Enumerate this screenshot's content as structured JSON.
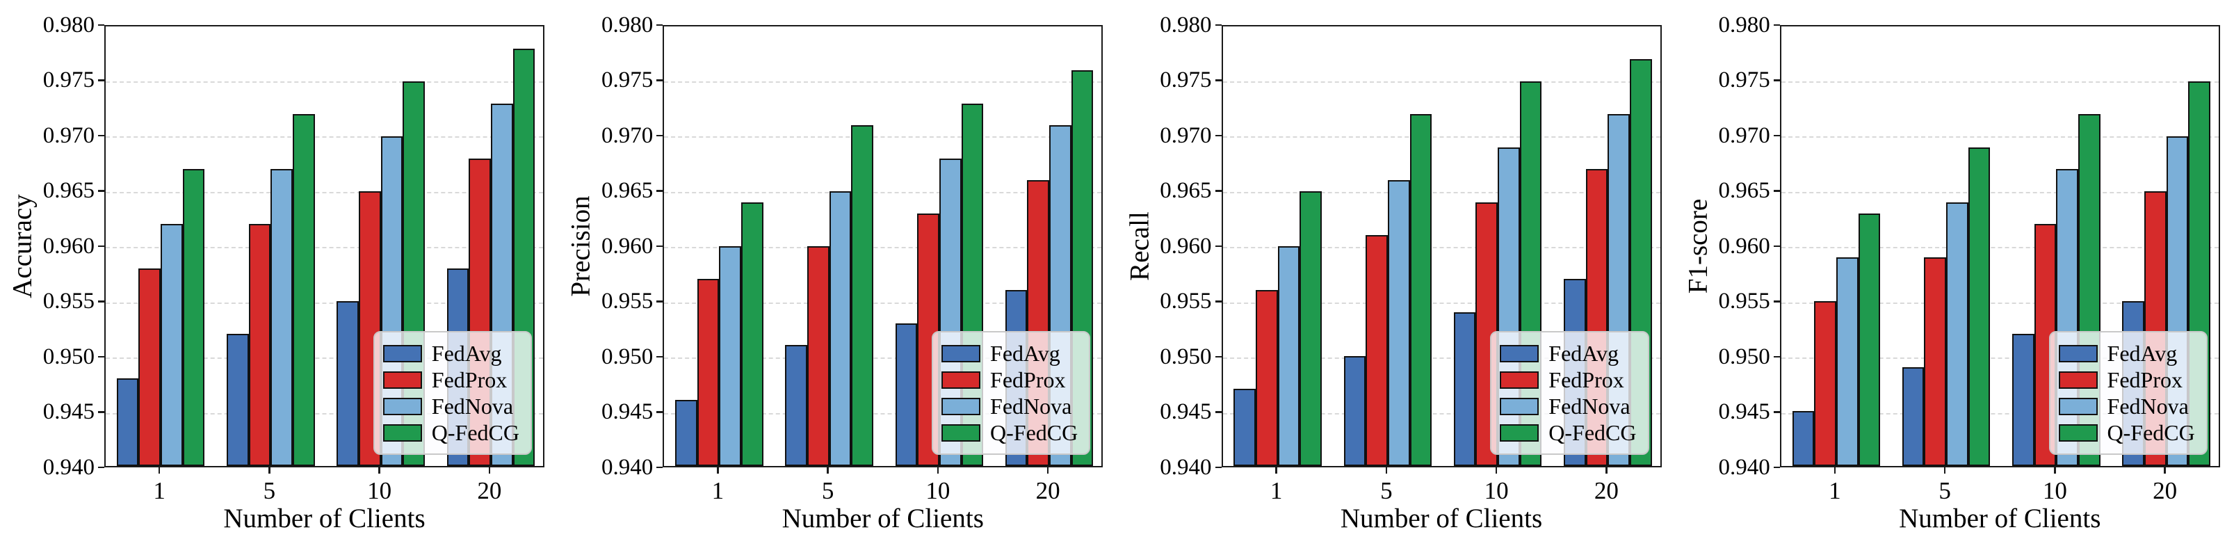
{
  "figure": {
    "xlabel": "Number of Clients",
    "categories": [
      "1",
      "5",
      "10",
      "20"
    ],
    "legend_labels": [
      "FedAvg",
      "FedProx",
      "FedNova",
      "Q-FedCG"
    ],
    "series_colors": {
      "FedAvg": "#4472B4",
      "FedProx": "#D62B2B",
      "FedNova": "#7BAFD8",
      "Q-FedCG": "#1F9A4E"
    },
    "grid_color": "#d9d9d9",
    "spine_color": "#1a1a1a",
    "bar_edge_color": "#111111"
  },
  "chart_data": [
    {
      "type": "bar",
      "title": "",
      "ylabel": "Accuracy",
      "xlabel": "Number of Clients",
      "categories": [
        "1",
        "5",
        "10",
        "20"
      ],
      "ylim": [
        0.94,
        0.98
      ],
      "ytick_step": 0.005,
      "grid": true,
      "legend_position": "lower right",
      "series": [
        {
          "name": "FedAvg",
          "color": "#4472B4",
          "values": [
            0.948,
            0.952,
            0.955,
            0.958
          ]
        },
        {
          "name": "FedProx",
          "color": "#D62B2B",
          "values": [
            0.958,
            0.962,
            0.965,
            0.968
          ]
        },
        {
          "name": "FedNova",
          "color": "#7BAFD8",
          "values": [
            0.962,
            0.967,
            0.97,
            0.973
          ]
        },
        {
          "name": "Q-FedCG",
          "color": "#1F9A4E",
          "values": [
            0.967,
            0.972,
            0.975,
            0.978
          ]
        }
      ]
    },
    {
      "type": "bar",
      "title": "",
      "ylabel": "Precision",
      "xlabel": "Number of Clients",
      "categories": [
        "1",
        "5",
        "10",
        "20"
      ],
      "ylim": [
        0.94,
        0.98
      ],
      "ytick_step": 0.005,
      "grid": true,
      "legend_position": "lower right",
      "series": [
        {
          "name": "FedAvg",
          "color": "#4472B4",
          "values": [
            0.946,
            0.951,
            0.953,
            0.956
          ]
        },
        {
          "name": "FedProx",
          "color": "#D62B2B",
          "values": [
            0.957,
            0.96,
            0.963,
            0.966
          ]
        },
        {
          "name": "FedNova",
          "color": "#7BAFD8",
          "values": [
            0.96,
            0.965,
            0.968,
            0.971
          ]
        },
        {
          "name": "Q-FedCG",
          "color": "#1F9A4E",
          "values": [
            0.964,
            0.971,
            0.973,
            0.976
          ]
        }
      ]
    },
    {
      "type": "bar",
      "title": "",
      "ylabel": "Recall",
      "xlabel": "Number of Clients",
      "categories": [
        "1",
        "5",
        "10",
        "20"
      ],
      "ylim": [
        0.94,
        0.98
      ],
      "ytick_step": 0.005,
      "grid": true,
      "legend_position": "lower right",
      "series": [
        {
          "name": "FedAvg",
          "color": "#4472B4",
          "values": [
            0.947,
            0.95,
            0.954,
            0.957
          ]
        },
        {
          "name": "FedProx",
          "color": "#D62B2B",
          "values": [
            0.956,
            0.961,
            0.964,
            0.967
          ]
        },
        {
          "name": "FedNova",
          "color": "#7BAFD8",
          "values": [
            0.96,
            0.966,
            0.969,
            0.972
          ]
        },
        {
          "name": "Q-FedCG",
          "color": "#1F9A4E",
          "values": [
            0.965,
            0.972,
            0.975,
            0.977
          ]
        }
      ]
    },
    {
      "type": "bar",
      "title": "",
      "ylabel": "F1-score",
      "xlabel": "Number of Clients",
      "categories": [
        "1",
        "5",
        "10",
        "20"
      ],
      "ylim": [
        0.94,
        0.98
      ],
      "ytick_step": 0.005,
      "grid": true,
      "legend_position": "lower right",
      "series": [
        {
          "name": "FedAvg",
          "color": "#4472B4",
          "values": [
            0.945,
            0.949,
            0.952,
            0.955
          ]
        },
        {
          "name": "FedProx",
          "color": "#D62B2B",
          "values": [
            0.955,
            0.959,
            0.962,
            0.965
          ]
        },
        {
          "name": "FedNova",
          "color": "#7BAFD8",
          "values": [
            0.959,
            0.964,
            0.967,
            0.97
          ]
        },
        {
          "name": "Q-FedCG",
          "color": "#1F9A4E",
          "values": [
            0.963,
            0.969,
            0.972,
            0.975
          ]
        }
      ]
    }
  ]
}
